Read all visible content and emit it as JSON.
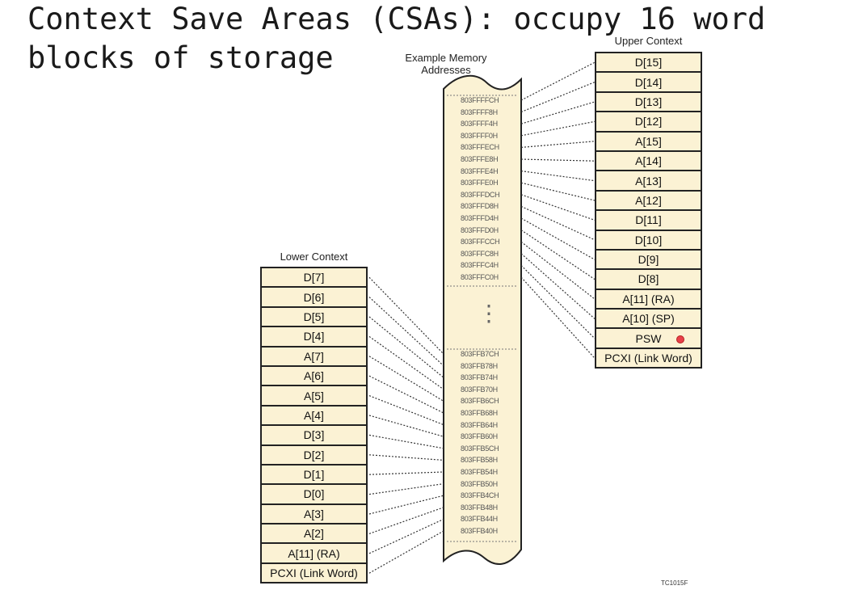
{
  "slide": {
    "title": "Context Save Areas (CSAs): occupy 16 word blocks of storage"
  },
  "diagram": {
    "memory_label": "Example Memory Addresses",
    "upper_context": {
      "heading": "Upper Context",
      "registers": [
        "D[15]",
        "D[14]",
        "D[13]",
        "D[12]",
        "A[15]",
        "A[14]",
        "A[13]",
        "A[12]",
        "D[11]",
        "D[10]",
        "D[9]",
        "D[8]",
        "A[11] (RA)",
        "A[10] (SP)",
        "PSW",
        "PCXI (Link Word)"
      ]
    },
    "lower_context": {
      "heading": "Lower Context",
      "registers": [
        "D[7]",
        "D[6]",
        "D[5]",
        "D[4]",
        "A[7]",
        "A[6]",
        "A[5]",
        "A[4]",
        "D[3]",
        "D[2]",
        "D[1]",
        "D[0]",
        "A[3]",
        "A[2]",
        "A[11] (RA)",
        "PCXI (Link Word)"
      ]
    },
    "upper_addresses": [
      "803FFFFCH",
      "803FFFF8H",
      "803FFFF4H",
      "803FFFF0H",
      "803FFFECH",
      "803FFFE8H",
      "803FFFE4H",
      "803FFFE0H",
      "803FFFDCH",
      "803FFFD8H",
      "803FFFD4H",
      "803FFFD0H",
      "803FFFCCH",
      "803FFFC8H",
      "803FFFC4H",
      "803FFFC0H"
    ],
    "lower_addresses": [
      "803FFB7CH",
      "803FFB78H",
      "803FFB74H",
      "803FFB70H",
      "803FFB6CH",
      "803FFB68H",
      "803FFB64H",
      "803FFB60H",
      "803FFB5CH",
      "803FFB58H",
      "803FFB54H",
      "803FFB50H",
      "803FFB4CH",
      "803FFB48H",
      "803FFB44H",
      "803FFB40H"
    ],
    "ellipsis": "⋮",
    "figure_code": "TC1015F",
    "marker": "red-dot"
  }
}
